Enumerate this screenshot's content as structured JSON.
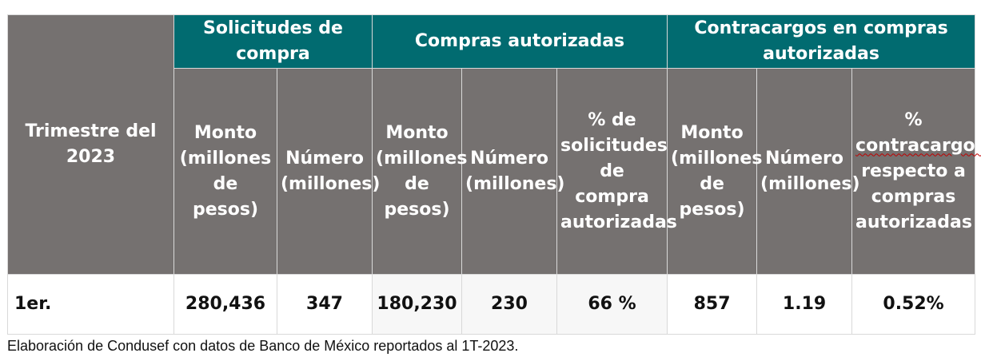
{
  "table": {
    "stub_header": "Trimestre del 2023",
    "groups": [
      "Solicitudes de compra",
      "Compras autorizadas",
      "Contracargos en compras autorizadas"
    ],
    "subheaders": {
      "sol_monto": "Monto (millones de pesos)",
      "sol_numero": "Número (millones)",
      "aut_monto": "Monto (millones de pesos)",
      "aut_numero": "Número (millones)",
      "aut_pct": "% de solicitudes de compra autorizadas",
      "con_monto": "Monto (millones de pesos)",
      "con_numero": "Número (millones)",
      "con_pct_prefix": "%",
      "con_pct_word": "contracargos",
      "con_pct_suffix": "respecto a compras autorizadas"
    },
    "row": {
      "label": "1er.",
      "sol_monto": "280,436",
      "sol_numero": "347",
      "aut_monto": "180,230",
      "aut_numero": "230",
      "aut_pct": "66 %",
      "con_monto": "857",
      "con_numero": "1.19",
      "con_pct": "0.52%"
    }
  },
  "source_note": "Elaboración de Condusef con datos de Banco de México reportados al 1T-2023.",
  "colors": {
    "header_teal": "#016b70",
    "header_grey": "#757170"
  }
}
